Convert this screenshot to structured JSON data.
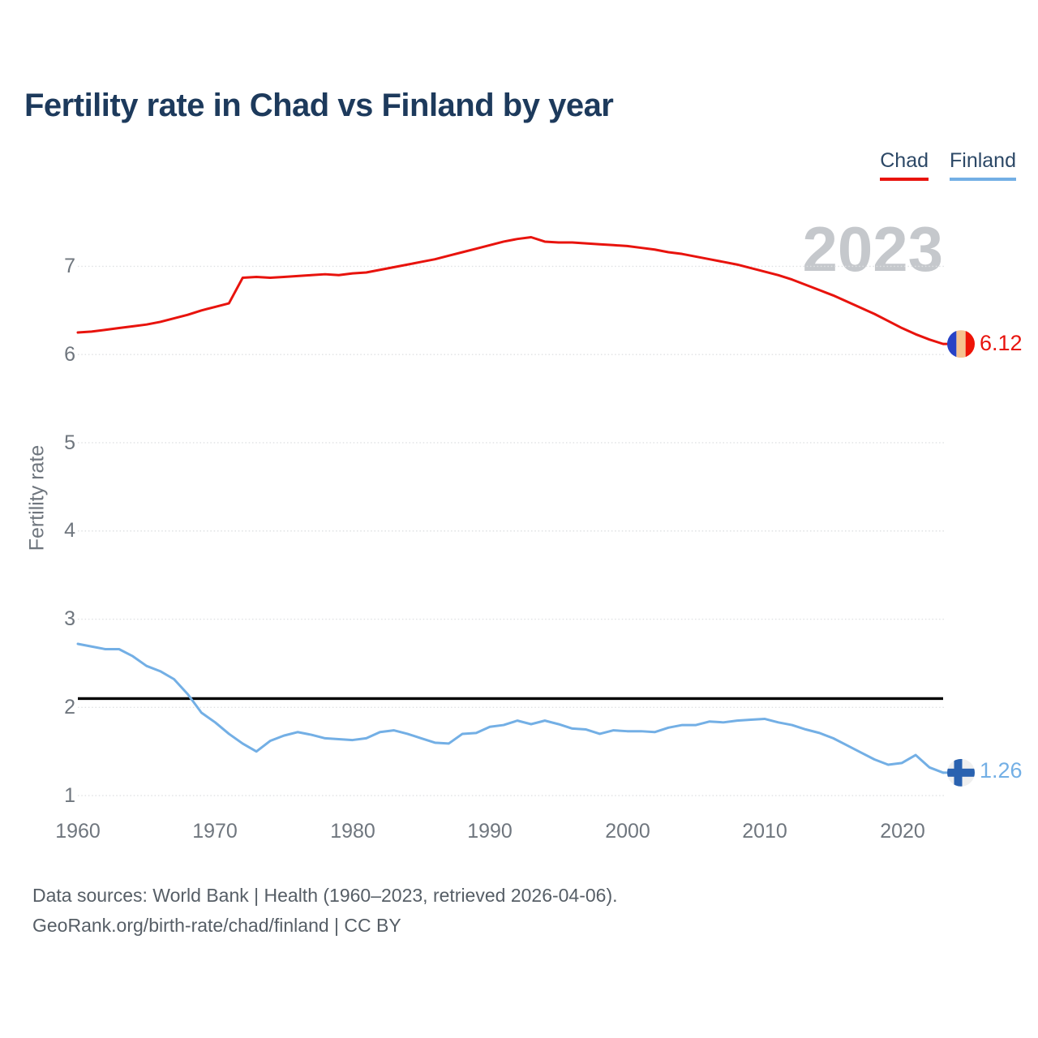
{
  "page": {
    "title": "Fertility rate in Chad vs Finland by year",
    "watermark": "2023",
    "footer_line1": "Data sources: World Bank | Health (1960–2023, retrieved 2026-04-06).",
    "footer_line2": "GeoRank.org/birth-rate/chad/finland | CC BY"
  },
  "legend": {
    "chad": {
      "label": "Chad",
      "color": "#e8130d"
    },
    "finland": {
      "label": "Finland",
      "color": "#73afe5"
    }
  },
  "axes": {
    "y_label": "Fertility rate",
    "y_ticks": [
      "7",
      "6",
      "5",
      "4",
      "3",
      "2",
      "1"
    ],
    "x_ticks": [
      "1960",
      "1970",
      "1980",
      "1990",
      "2000",
      "2010",
      "2020"
    ]
  },
  "end_labels": {
    "chad": "6.12",
    "finland": "1.26"
  },
  "chart_data": {
    "type": "line",
    "title": "Fertility rate in Chad vs Finland by year",
    "xlabel": "",
    "ylabel": "Fertility rate",
    "xlim": [
      1960,
      2023
    ],
    "ylim": [
      1,
      7.8
    ],
    "grid": "horizontal-dotted",
    "legend_position": "top-right",
    "watermark": "2023",
    "y_gridlines": [
      1,
      2,
      3,
      4,
      5,
      6,
      7
    ],
    "reference_line": {
      "value": 2.1,
      "color": "#000000"
    },
    "x": [
      1960,
      1961,
      1962,
      1963,
      1964,
      1965,
      1966,
      1967,
      1968,
      1969,
      1970,
      1971,
      1972,
      1973,
      1974,
      1975,
      1976,
      1977,
      1978,
      1979,
      1980,
      1981,
      1982,
      1983,
      1984,
      1985,
      1986,
      1987,
      1988,
      1989,
      1990,
      1991,
      1992,
      1993,
      1994,
      1995,
      1996,
      1997,
      1998,
      1999,
      2000,
      2001,
      2002,
      2003,
      2004,
      2005,
      2006,
      2007,
      2008,
      2009,
      2010,
      2011,
      2012,
      2013,
      2014,
      2015,
      2016,
      2017,
      2018,
      2019,
      2020,
      2021,
      2022,
      2023
    ],
    "series": [
      {
        "name": "Chad",
        "color": "#e8130d",
        "end_value": 6.12,
        "values": [
          6.25,
          6.26,
          6.28,
          6.3,
          6.32,
          6.34,
          6.37,
          6.41,
          6.45,
          6.5,
          6.54,
          6.58,
          6.87,
          6.88,
          6.87,
          6.88,
          6.89,
          6.9,
          6.91,
          6.9,
          6.92,
          6.93,
          6.96,
          6.99,
          7.02,
          7.05,
          7.08,
          7.12,
          7.16,
          7.2,
          7.24,
          7.28,
          7.31,
          7.33,
          7.28,
          7.27,
          7.27,
          7.26,
          7.25,
          7.24,
          7.23,
          7.21,
          7.19,
          7.16,
          7.14,
          7.11,
          7.08,
          7.05,
          7.02,
          6.98,
          6.94,
          6.9,
          6.85,
          6.79,
          6.73,
          6.67,
          6.6,
          6.53,
          6.46,
          6.38,
          6.3,
          6.23,
          6.17,
          6.12
        ]
      },
      {
        "name": "Finland",
        "color": "#73afe5",
        "end_value": 1.26,
        "values": [
          2.72,
          2.69,
          2.66,
          2.66,
          2.58,
          2.47,
          2.41,
          2.32,
          2.15,
          1.94,
          1.83,
          1.7,
          1.59,
          1.5,
          1.62,
          1.68,
          1.72,
          1.69,
          1.65,
          1.64,
          1.63,
          1.65,
          1.72,
          1.74,
          1.7,
          1.65,
          1.6,
          1.59,
          1.7,
          1.71,
          1.78,
          1.8,
          1.85,
          1.81,
          1.85,
          1.81,
          1.76,
          1.75,
          1.7,
          1.74,
          1.73,
          1.73,
          1.72,
          1.77,
          1.8,
          1.8,
          1.84,
          1.83,
          1.85,
          1.86,
          1.87,
          1.83,
          1.8,
          1.75,
          1.71,
          1.65,
          1.57,
          1.49,
          1.41,
          1.35,
          1.37,
          1.46,
          1.32,
          1.26
        ]
      }
    ]
  }
}
